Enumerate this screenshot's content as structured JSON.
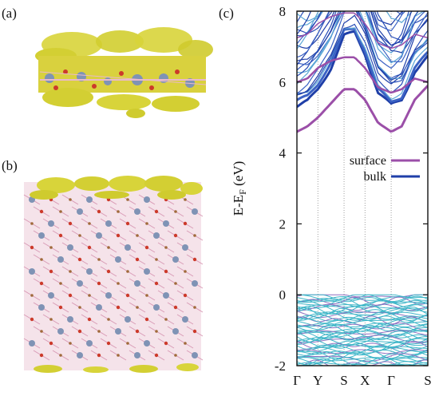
{
  "panels": {
    "a": {
      "label": "(a)"
    },
    "b": {
      "label": "(b)"
    },
    "c": {
      "label": "(c)"
    }
  },
  "colors": {
    "surface": "#9b4fa8",
    "bulk": "#1f3fa8",
    "valence": "#3fb6c8",
    "isosurface": "#d8d43a",
    "atom_blue": "#7f93b5",
    "atom_red": "#cc3a2a",
    "atom_pink": "#e9b9cc"
  },
  "chart_data": {
    "type": "line",
    "title": "",
    "xlabel": "",
    "ylabel_main": "E-E",
    "ylabel_sub": "F",
    "ylabel_unit": " (eV)",
    "ylim": [
      -2,
      8
    ],
    "yticks": [
      "-2",
      "0",
      "2",
      "4",
      "6",
      "8"
    ],
    "kpoints": [
      "Γ",
      "Y",
      "S",
      "X",
      "Γ",
      "S"
    ],
    "kpoint_positions": [
      0,
      0.8,
      1.8,
      2.6,
      3.6,
      5.0
    ],
    "grid": "dotted vertical lines at k-points",
    "legend_position": "middle-right",
    "series": [
      {
        "name": "surface",
        "lowest_band": [
          [
            0,
            4.6
          ],
          [
            0.4,
            4.75
          ],
          [
            0.8,
            5.0
          ],
          [
            1.3,
            5.4
          ],
          [
            1.8,
            5.8
          ],
          [
            2.2,
            5.8
          ],
          [
            2.6,
            5.5
          ],
          [
            3.1,
            4.85
          ],
          [
            3.6,
            4.6
          ],
          [
            4.0,
            4.75
          ],
          [
            4.5,
            5.5
          ],
          [
            5.0,
            5.9
          ]
        ],
        "second_band": [
          [
            0,
            6.0
          ],
          [
            0.4,
            6.1
          ],
          [
            0.8,
            6.4
          ],
          [
            1.3,
            6.6
          ],
          [
            1.8,
            6.7
          ],
          [
            2.2,
            6.7
          ],
          [
            2.6,
            6.4
          ],
          [
            3.1,
            5.85
          ],
          [
            3.6,
            5.7
          ],
          [
            4.0,
            5.8
          ],
          [
            4.5,
            6.1
          ],
          [
            5.0,
            6.0
          ]
        ]
      },
      {
        "name": "bulk",
        "lowest_band": [
          [
            0,
            5.3
          ],
          [
            0.4,
            5.45
          ],
          [
            0.8,
            5.8
          ],
          [
            1.3,
            6.4
          ],
          [
            1.8,
            7.3
          ],
          [
            2.2,
            7.4
          ],
          [
            2.6,
            6.8
          ],
          [
            3.1,
            5.7
          ],
          [
            3.6,
            5.35
          ],
          [
            4.0,
            5.5
          ],
          [
            4.5,
            6.3
          ],
          [
            5.0,
            6.7
          ]
        ]
      }
    ],
    "valence_band_top": 0.0
  }
}
